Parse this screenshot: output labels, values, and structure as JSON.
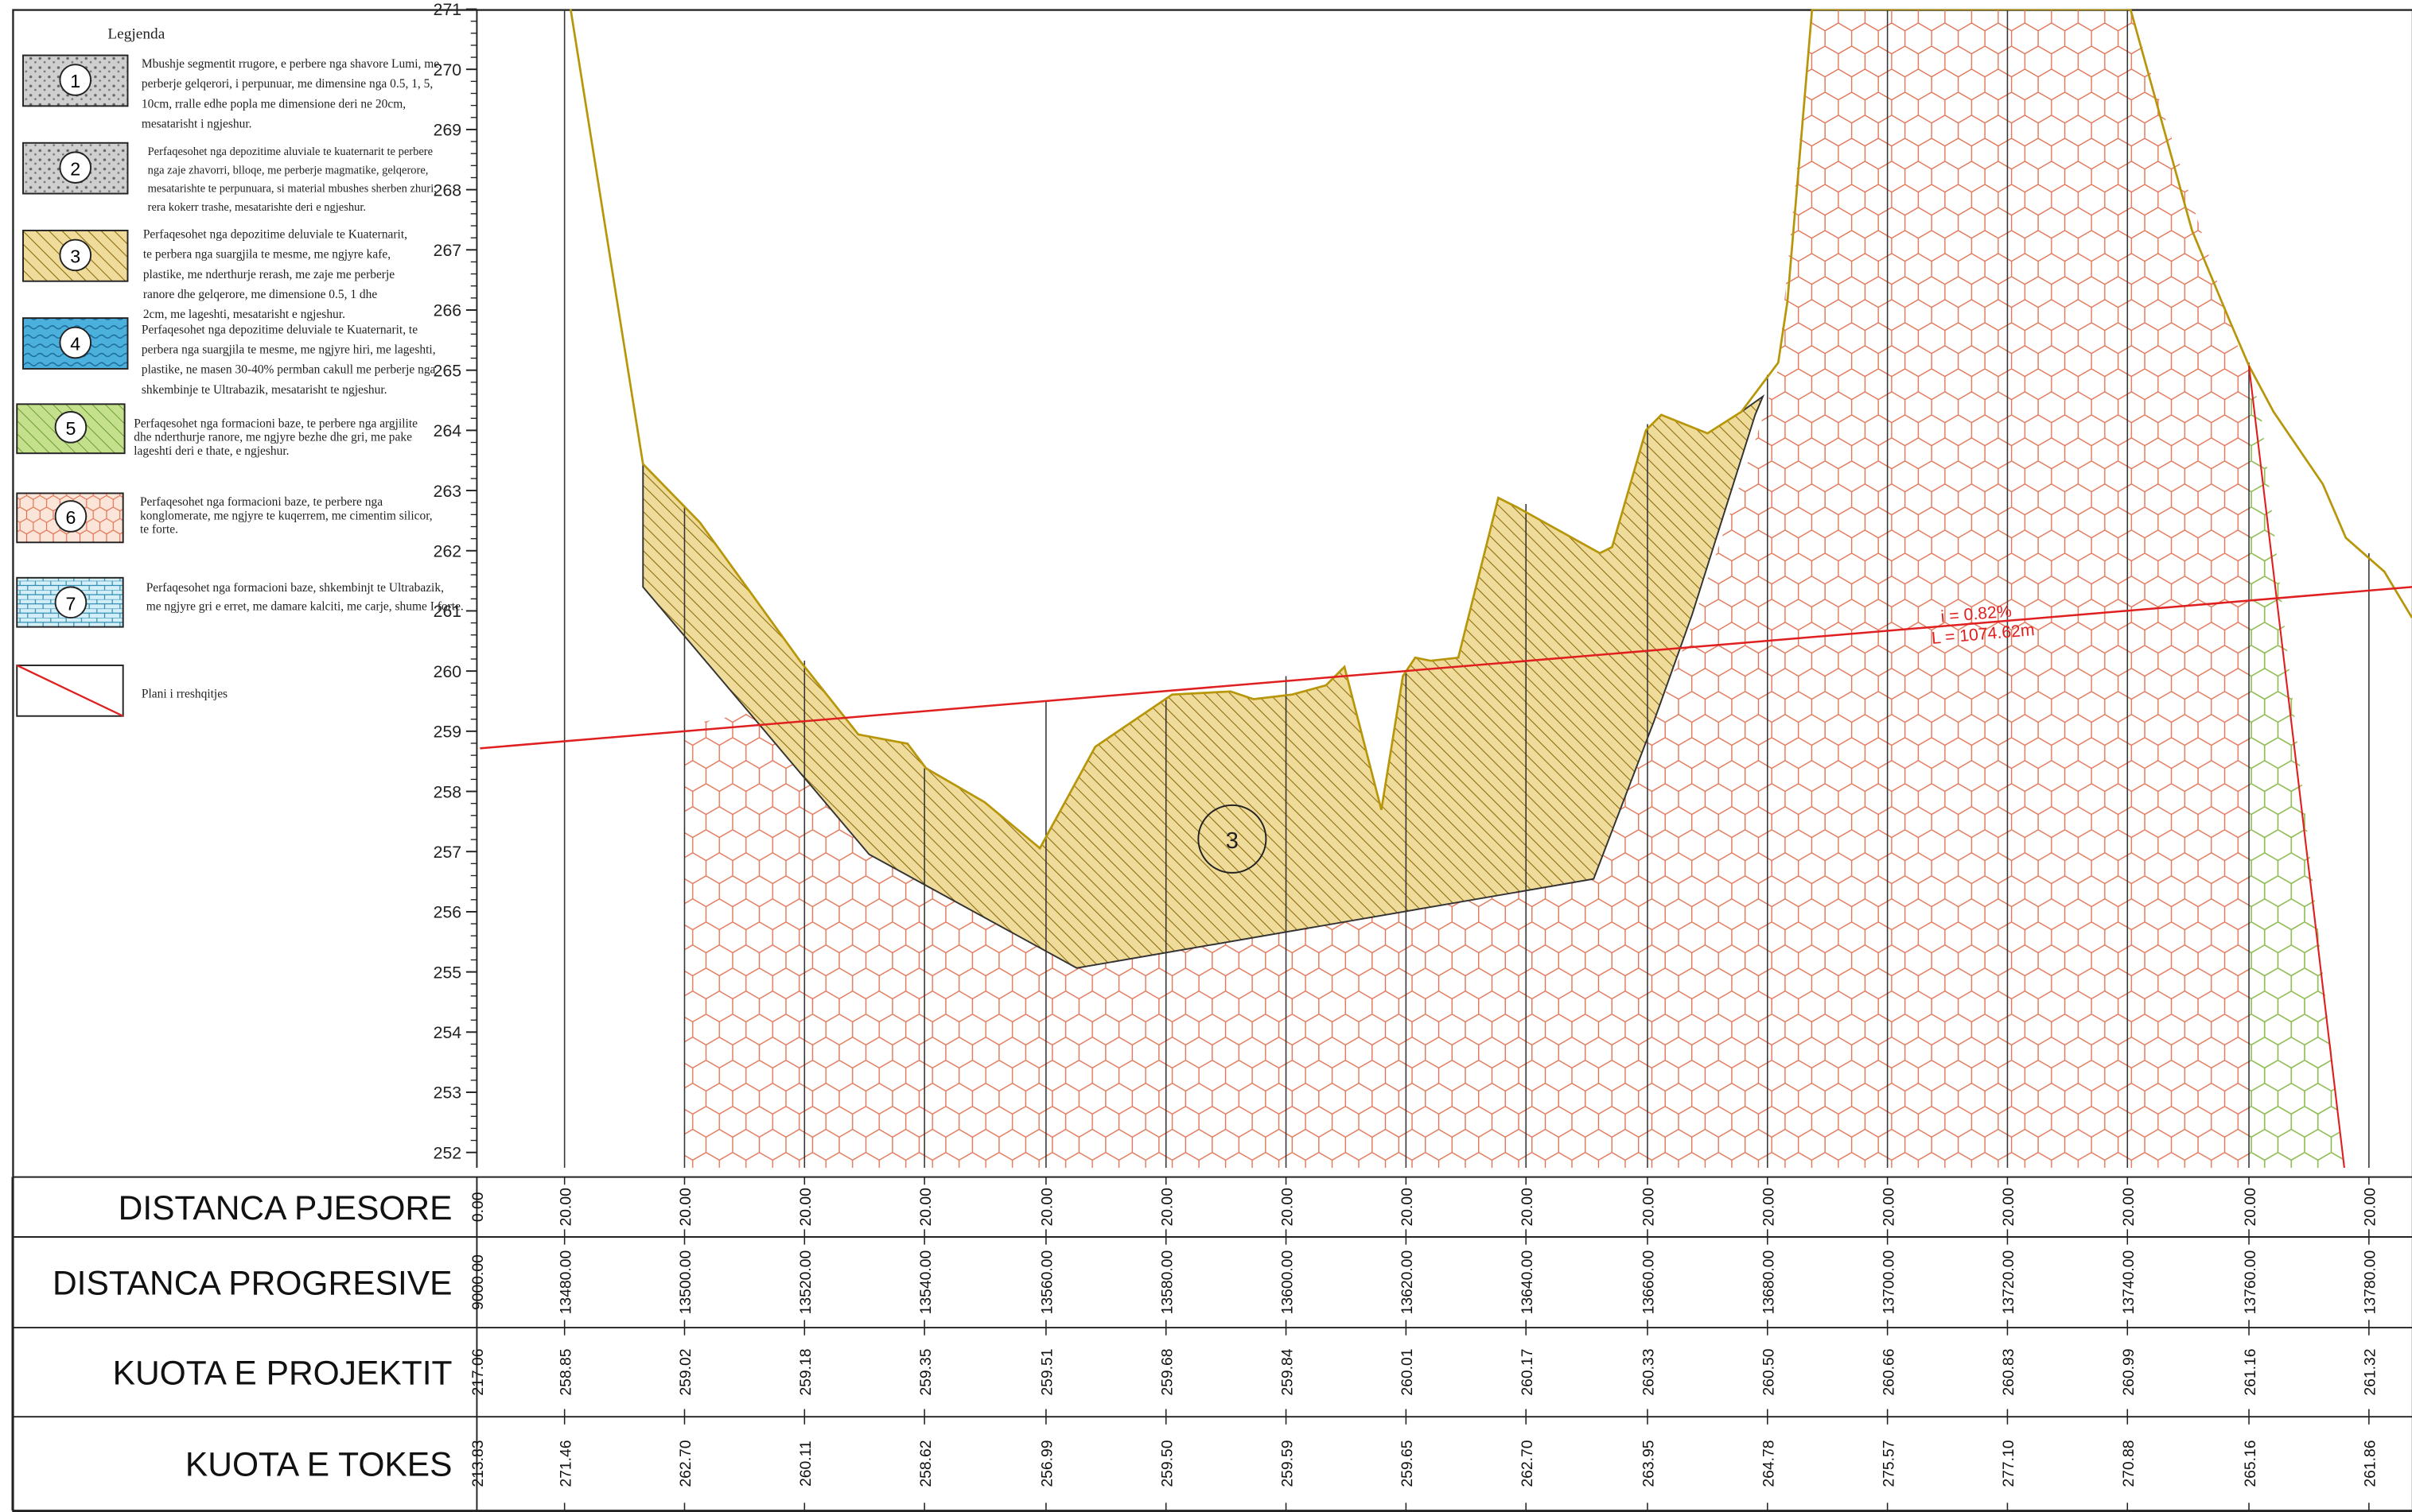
{
  "legend": {
    "title": "Legjenda",
    "items": [
      {
        "id": "1",
        "lines": [
          "Mbushje segmentit rrugore, e perbere nga shavore Lumi, me",
          "perberje gelqerori, i perpunuar, me dimensine nga 0.5, 1, 5,",
          "10cm, rralle edhe popla me dimensione deri ne 20cm,",
          "mesatarisht i ngjeshur."
        ],
        "fill": "#c8c8c8"
      },
      {
        "id": "2",
        "lines": [
          "Perfaqesohet nga depozitime aluviale te kuaternarit te perbere",
          "nga zaje zhavorri, blloqe, me perberje magmatike, gelqerore,",
          "mesatarishte te perpunuara, si material mbushes sherben zhuri,",
          "rera kokerr trashe, mesatarishte deri e ngjeshur."
        ],
        "fill": "#c8c8c8"
      },
      {
        "id": "3",
        "lines": [
          "Perfaqesohet nga depozitime deluviale te Kuaternarit,",
          "te perbera nga suargjila te mesme, me ngjyre kafe,",
          "plastike, me nderthurje rerash, me zaje me perberje",
          "ranore dhe gelqerore, me dimensione 0.5, 1 dhe",
          "2cm, me lageshti, mesatarisht e ngjeshur."
        ],
        "fill": "#e8c84a"
      },
      {
        "id": "4",
        "lines": [
          "Perfaqesohet nga depozitime deluviale te Kuaternarit,  te",
          "perbera nga suargjila te mesme, me ngjyre hiri, me lageshti,",
          "plastike, ne masen 30-40% permban cakull me perberje nga",
          "shkembinje te Ultrabazik, mesatarisht te ngjeshur."
        ],
        "fill": "#3fa8d8"
      },
      {
        "id": "5",
        "lines": [
          "Perfaqesohet nga formacioni baze, te perbere nga argjilite",
          "dhe nderthurje ranore, me ngjyre bezhe dhe gri, me pake",
          "lageshti deri e thate, e ngjeshur."
        ],
        "fill": "#b5d87a"
      },
      {
        "id": "6",
        "lines": [
          "Perfaqesohet nga formacioni baze, te perbere nga",
          "konglomerate, me ngjyre te kuqerrem, me cimentim silicor,",
          "te forte."
        ],
        "fill": "#f0b090"
      },
      {
        "id": "7",
        "lines": [
          "Perfaqesohet nga formacioni baze, shkembinjt te Ultrabazik,",
          "me ngjyre gri e erret, me damare kalciti, me carje, shume I forte."
        ],
        "fill": "#b8e4f0"
      }
    ],
    "plan_label": "Plani i rreshqitjes"
  },
  "profile": {
    "y_axis_ticks": [
      "252",
      "253",
      "254",
      "255",
      "256",
      "257",
      "258",
      "259",
      "260",
      "261",
      "262",
      "263",
      "264",
      "265",
      "266",
      "267",
      "268",
      "269",
      "270",
      "271"
    ],
    "slope_label": "i = 0.82%",
    "length_label": "L = 1074.62m",
    "layer_marker": "3"
  },
  "table": {
    "rows": [
      {
        "title": "DISTANCA PJESORE",
        "first": "0.00",
        "values": [
          "20.00",
          "20.00",
          "20.00",
          "20.00",
          "20.00",
          "20.00",
          "20.00",
          "20.00",
          "20.00",
          "20.00",
          "20.00",
          "20.00",
          "20.00",
          "20.00",
          "20.00",
          "20.00"
        ]
      },
      {
        "title": "DISTANCA PROGRESIVE",
        "first": "9000.00",
        "values": [
          "13480.00",
          "13500.00",
          "13520.00",
          "13540.00",
          "13560.00",
          "13580.00",
          "13600.00",
          "13620.00",
          "13640.00",
          "13660.00",
          "13680.00",
          "13700.00",
          "13720.00",
          "13740.00",
          "13760.00",
          "13780.00"
        ]
      },
      {
        "title": "KUOTA E PROJEKTIT",
        "first": "217.06",
        "values": [
          "258.85",
          "259.02",
          "259.18",
          "259.35",
          "259.51",
          "259.68",
          "259.84",
          "260.01",
          "260.17",
          "260.33",
          "260.50",
          "260.66",
          "260.83",
          "260.99",
          "261.16",
          "261.32"
        ]
      },
      {
        "title": "KUOTA E TOKES",
        "first": "213.83",
        "values": [
          "271.46",
          "262.70",
          "260.11",
          "258.62",
          "256.99",
          "259.50",
          "259.59",
          "259.65",
          "262.70",
          "263.95",
          "264.78",
          "275.57",
          "277.10",
          "270.88",
          "265.16",
          "261.86"
        ]
      }
    ]
  },
  "colors": {
    "ground_line": "#b8960a",
    "slip_plane": "#e02020",
    "layer3_hatch": "#8a6a10",
    "layer3_fill": "#f0dc9a",
    "layer6_hex": "#e07050",
    "layer5_hex": "#88b848"
  }
}
